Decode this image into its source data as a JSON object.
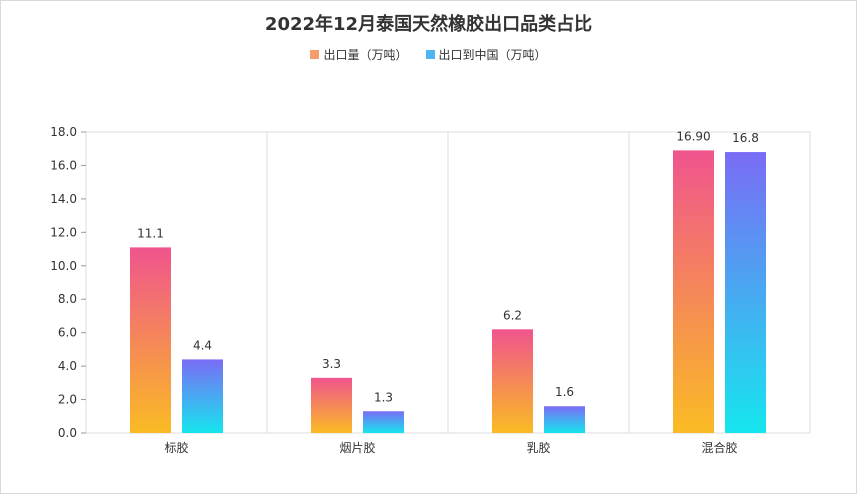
{
  "chart_data": {
    "type": "bar",
    "title": "2022年12月泰国天然橡胶出口品类占比",
    "categories": [
      "标胶",
      "烟片胶",
      "乳胶",
      "混合胶"
    ],
    "series": [
      {
        "name": "出口量（万吨）",
        "values": [
          11.1,
          3.3,
          6.2,
          16.9
        ],
        "labels": [
          "11.1",
          "3.3",
          "6.2",
          "16.90"
        ],
        "color_top": "#F0548E",
        "color_bottom": "#FABB24"
      },
      {
        "name": "出口到中国（万吨）",
        "values": [
          4.4,
          1.3,
          1.6,
          16.8
        ],
        "labels": [
          "4.4",
          "1.3",
          "1.6",
          "16.8"
        ],
        "color_top": "#7A6CF5",
        "color_bottom": "#16E6EE"
      }
    ],
    "ylim": [
      0,
      18
    ],
    "yticks": [
      "0.0",
      "2.0",
      "4.0",
      "6.0",
      "8.0",
      "10.0",
      "12.0",
      "14.0",
      "16.0",
      "18.0"
    ],
    "legend_position": "top-center",
    "grid": "vertical category separators"
  },
  "legend_colors": [
    "#F59E6B",
    "#50B4F4"
  ]
}
